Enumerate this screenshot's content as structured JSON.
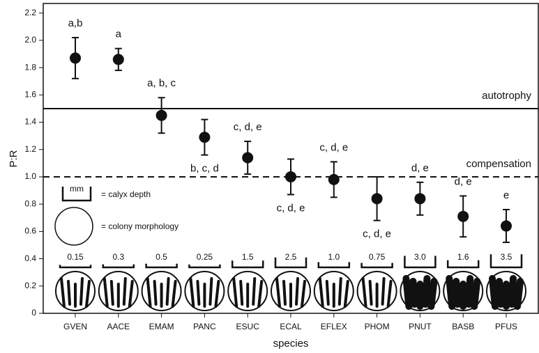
{
  "chart_data": {
    "type": "errorbar",
    "xlabel": "species",
    "ylabel": "P:R",
    "categories": [
      "GVEN",
      "AACE",
      "EMAM",
      "PANC",
      "ESUC",
      "ECAL",
      "EFLEX",
      "PHOM",
      "PNUT",
      "BASB",
      "PFUS"
    ],
    "values": [
      1.87,
      1.86,
      1.45,
      1.29,
      1.14,
      1.0,
      0.98,
      0.84,
      0.84,
      0.71,
      0.64
    ],
    "errors": [
      0.15,
      0.08,
      0.13,
      0.13,
      0.12,
      0.13,
      0.13,
      0.16,
      0.12,
      0.15,
      0.12
    ],
    "group_letters": [
      "a,b",
      "a",
      "a, b, c",
      "b, c, d",
      "c, d, e",
      "c, d, e",
      "c, d, e",
      "c, d, e",
      "d, e",
      "d, e",
      "e"
    ],
    "calyx_depth": [
      0.15,
      0.3,
      0.5,
      0.25,
      1.5,
      2.5,
      1.0,
      0.75,
      3.0,
      1.6,
      3.5
    ],
    "calyx_depth_labels": [
      "0.15",
      "0.3",
      "0.5",
      "0.25",
      "1.5",
      "2.5",
      "1.0",
      "0.75",
      "3.0",
      "1.6",
      "3.5"
    ],
    "reference_lines": [
      {
        "value": 1.5,
        "label": "autotrophy",
        "style": "solid"
      },
      {
        "value": 1,
        "label": "compensation",
        "style": "dashed"
      }
    ],
    "legend": {
      "unit": "mm",
      "calyx": "= calyx depth",
      "morphology": "= colony morphology"
    },
    "color": "#111111",
    "ylim": [
      0,
      2.27
    ],
    "yticks": [
      0,
      0.2,
      0.4,
      0.6,
      0.8,
      {
        "value": 1,
        "label": "1.0"
      },
      1.2,
      1.4,
      1.6,
      1.8,
      {
        "value": 2,
        "label": "2.0"
      },
      2.2
    ]
  }
}
